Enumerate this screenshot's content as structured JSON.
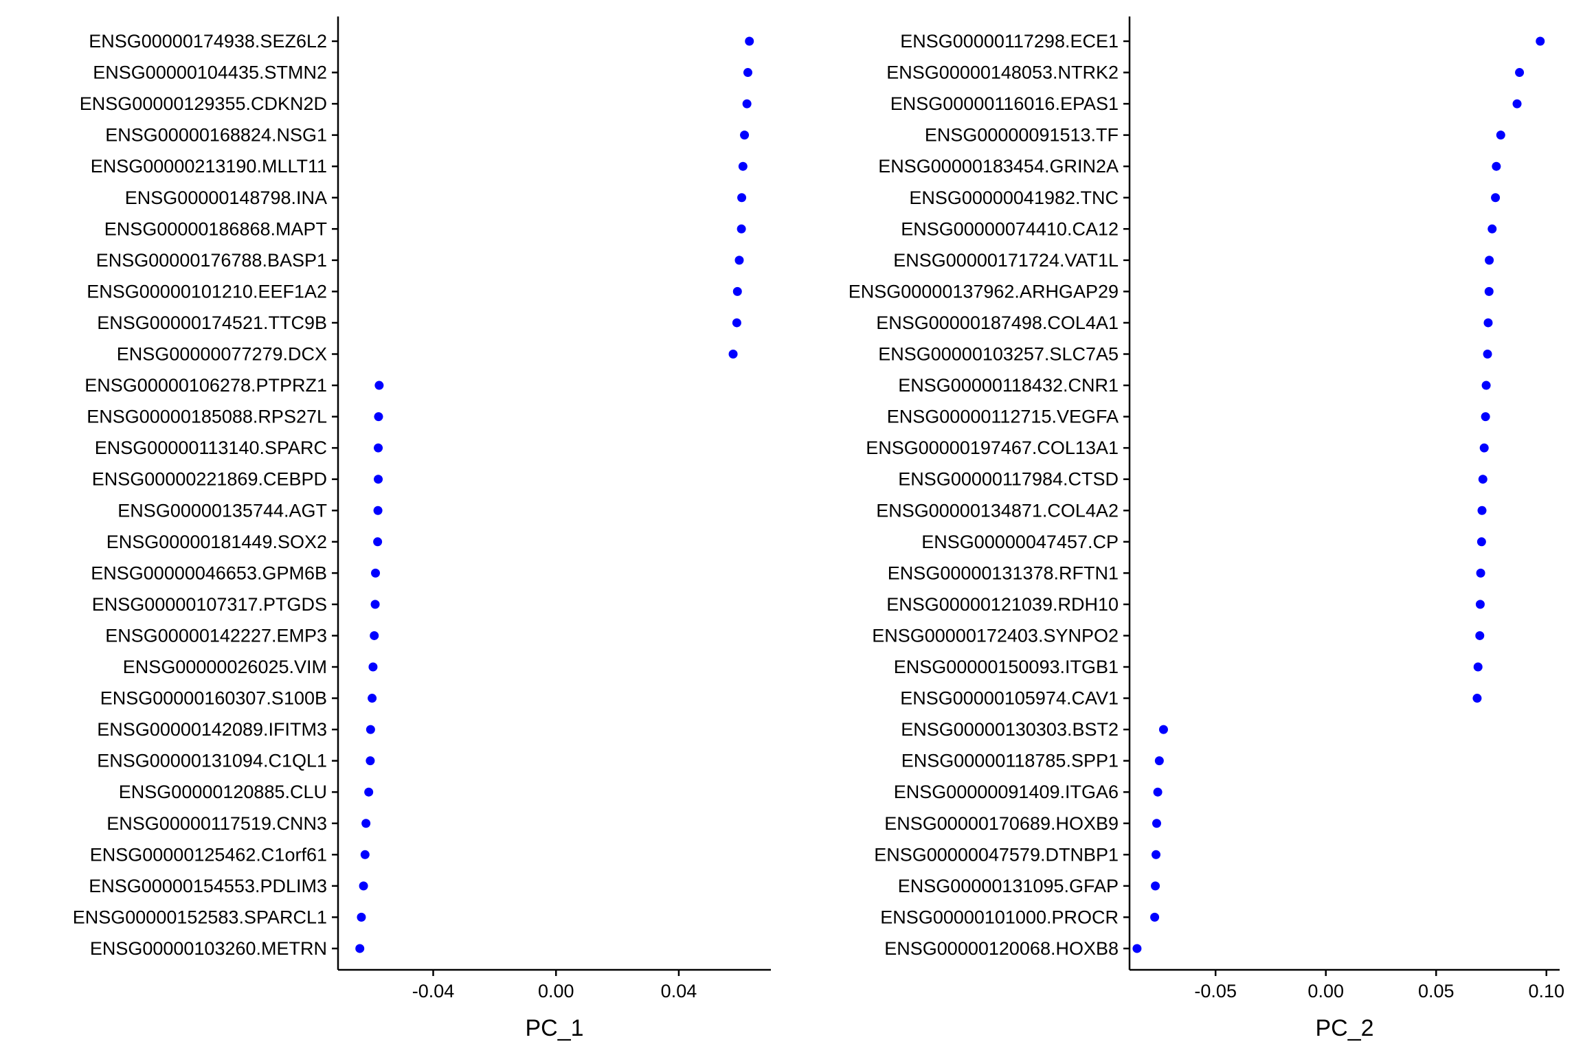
{
  "chart_data": [
    {
      "type": "scatter",
      "xlabel": "PC_1",
      "xlim": [
        -0.071,
        0.07
      ],
      "xticks": [
        -0.04,
        0.0,
        0.04
      ],
      "xtick_labels": [
        "-0.04",
        "0.00",
        "0.04"
      ],
      "point_color": "#0000ff",
      "legend": "none",
      "grid": false,
      "categories": [
        "ENSG00000174938.SEZ6L2",
        "ENSG00000104435.STMN2",
        "ENSG00000129355.CDKN2D",
        "ENSG00000168824.NSG1",
        "ENSG00000213190.MLLT11",
        "ENSG00000148798.INA",
        "ENSG00000186868.MAPT",
        "ENSG00000176788.BASP1",
        "ENSG00000101210.EEF1A2",
        "ENSG00000174521.TTC9B",
        "ENSG00000077279.DCX",
        "ENSG00000106278.PTPRZ1",
        "ENSG00000185088.RPS27L",
        "ENSG00000113140.SPARC",
        "ENSG00000221869.CEBPD",
        "ENSG00000135744.AGT",
        "ENSG00000181449.SOX2",
        "ENSG00000046653.GPM6B",
        "ENSG00000107317.PTGDS",
        "ENSG00000142227.EMP3",
        "ENSG00000026025.VIM",
        "ENSG00000160307.S100B",
        "ENSG00000142089.IFITM3",
        "ENSG00000131094.C1QL1",
        "ENSG00000120885.CLU",
        "ENSG00000117519.CNN3",
        "ENSG00000125462.C1orf61",
        "ENSG00000154553.PDLIM3",
        "ENSG00000152583.SPARCL1",
        "ENSG00000103260.METRN"
      ],
      "values": [
        0.063,
        0.0625,
        0.0622,
        0.0614,
        0.0609,
        0.0605,
        0.0604,
        0.0597,
        0.0591,
        0.0589,
        0.0577,
        -0.0576,
        -0.0578,
        -0.0579,
        -0.0579,
        -0.058,
        -0.0581,
        -0.0588,
        -0.0589,
        -0.0592,
        -0.0596,
        -0.0599,
        -0.0604,
        -0.0605,
        -0.061,
        -0.0619,
        -0.0622,
        -0.0627,
        -0.0634,
        -0.0639
      ]
    },
    {
      "type": "scatter",
      "xlabel": "PC_2",
      "xlim": [
        -0.089,
        0.106
      ],
      "xticks": [
        -0.05,
        0.0,
        0.05,
        0.1
      ],
      "xtick_labels": [
        "-0.05",
        "0.00",
        "0.05",
        "0.10"
      ],
      "point_color": "#0000ff",
      "legend": "none",
      "grid": false,
      "categories": [
        "ENSG00000117298.ECE1",
        "ENSG00000148053.NTRK2",
        "ENSG00000116016.EPAS1",
        "ENSG00000091513.TF",
        "ENSG00000183454.GRIN2A",
        "ENSG00000041982.TNC",
        "ENSG00000074410.CA12",
        "ENSG00000171724.VAT1L",
        "ENSG00000137962.ARHGAP29",
        "ENSG00000187498.COL4A1",
        "ENSG00000103257.SLC7A5",
        "ENSG00000118432.CNR1",
        "ENSG00000112715.VEGFA",
        "ENSG00000197467.COL13A1",
        "ENSG00000117984.CTSD",
        "ENSG00000134871.COL4A2",
        "ENSG00000047457.CP",
        "ENSG00000131378.RFTN1",
        "ENSG00000121039.RDH10",
        "ENSG00000172403.SYNPO2",
        "ENSG00000150093.ITGB1",
        "ENSG00000105974.CAV1",
        "ENSG00000130303.BST2",
        "ENSG00000118785.SPP1",
        "ENSG00000091409.ITGA6",
        "ENSG00000170689.HOXB9",
        "ENSG00000047579.DTNBP1",
        "ENSG00000131095.GFAP",
        "ENSG00000101000.PROCR",
        "ENSG00000120068.HOXB8"
      ],
      "values": [
        0.0972,
        0.0878,
        0.0867,
        0.0793,
        0.0773,
        0.0769,
        0.0754,
        0.0741,
        0.074,
        0.0736,
        0.0733,
        0.0727,
        0.0724,
        0.0718,
        0.0712,
        0.0708,
        0.0706,
        0.0702,
        0.07,
        0.0698,
        0.069,
        0.0686,
        -0.0736,
        -0.0755,
        -0.0762,
        -0.0767,
        -0.077,
        -0.0773,
        -0.0776,
        -0.0856
      ]
    }
  ]
}
